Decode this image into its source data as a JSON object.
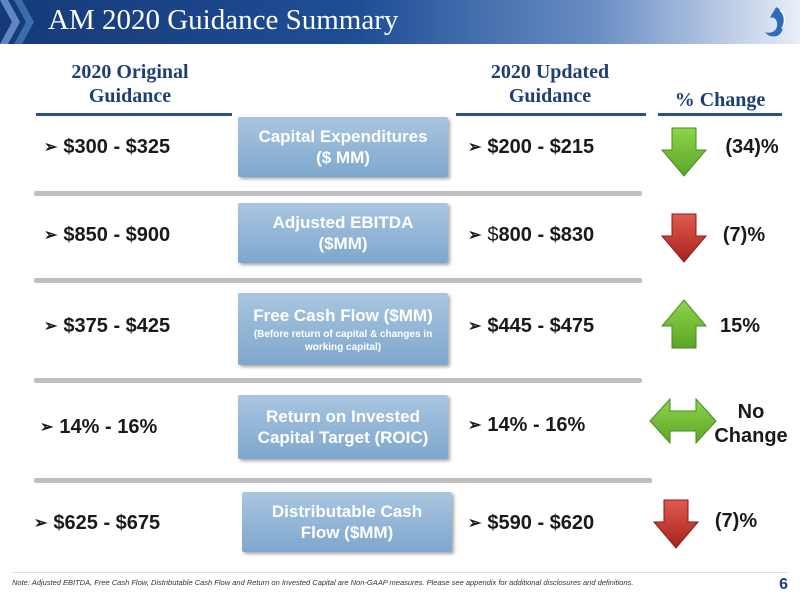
{
  "header": {
    "title": "AM 2020 Guidance Summary"
  },
  "columns": {
    "original": "2020 Original Guidance",
    "original_line1": "2020 Original",
    "original_line2": "Guidance",
    "updated_line1": "2020 Updated",
    "updated_line2": "Guidance",
    "change": "% Change"
  },
  "rows": [
    {
      "metric": "Capital Expenditures",
      "metric_line2": "($ MM)",
      "original": "$300 - $325",
      "updated": "$200 - $215",
      "change": "(34)%",
      "direction": "down",
      "arrow_color": "#6fbf2e"
    },
    {
      "metric": "Adjusted EBITDA",
      "metric_line2": "($MM)",
      "original": "$850 - $900",
      "updated_prefix": "$",
      "updated": "800 - $830",
      "change": "(7)%",
      "direction": "down",
      "arrow_color": "#c0322f"
    },
    {
      "metric": "Free Cash Flow ($MM)",
      "metric_sub": "(Before return of capital & changes in working capital)",
      "original": "$375 - $425",
      "updated": "$445 - $475",
      "change": "15%",
      "direction": "up",
      "arrow_color": "#6fbf2e"
    },
    {
      "metric": "Return on Invested",
      "metric_line2": "Capital Target (ROIC)",
      "original": "14% - 16%",
      "updated": "14% - 16%",
      "change_line1": "No",
      "change_line2": "Change",
      "direction": "both",
      "arrow_color": "#6fbf2e"
    },
    {
      "metric": "Distributable Cash",
      "metric_line2": "Flow ($MM)",
      "original": "$625 - $675",
      "updated": "$590 - $620",
      "change": "(7)%",
      "direction": "down",
      "arrow_color": "#c0322f"
    }
  ],
  "bullet": "➢",
  "footnote": "Note: Adjusted EBITDA, Free Cash Flow, Distributable Cash Flow and Return on Invested Capital are Non-GAAP measures. Please see appendix for additional disclosures and definitions.",
  "page_number": "6"
}
